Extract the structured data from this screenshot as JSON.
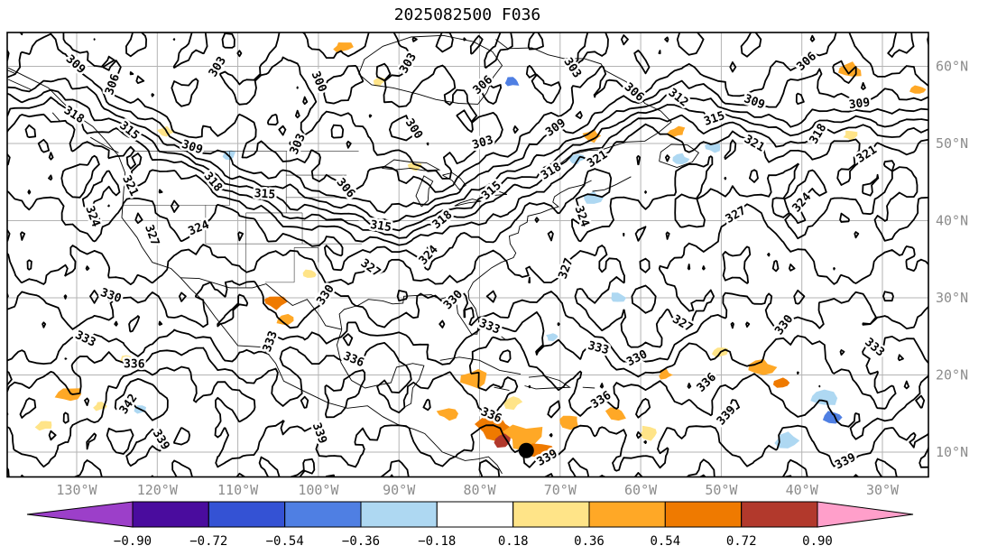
{
  "title": "2025082500 F036",
  "axes": {
    "lon_labels": [
      "130°W",
      "120°W",
      "110°W",
      "100°W",
      "90°W",
      "80°W",
      "70°W",
      "60°W",
      "50°W",
      "40°W",
      "30°W"
    ],
    "lon_values_deg_w": [
      130,
      120,
      110,
      100,
      90,
      80,
      70,
      60,
      50,
      40,
      30
    ],
    "lat_labels": [
      "60°N",
      "50°N",
      "40°N",
      "30°N",
      "20°N",
      "10°N"
    ],
    "lat_values_deg_n": [
      60,
      50,
      40,
      30,
      20,
      10
    ],
    "label_color": "#8c8c8c"
  },
  "colorbar": {
    "tick_labels": [
      "−0.90",
      "−0.72",
      "−0.54",
      "−0.36",
      "−0.18",
      "0.18",
      "0.36",
      "0.54",
      "0.72",
      "0.90"
    ],
    "boundaries": [
      -0.9,
      -0.72,
      -0.54,
      -0.36,
      -0.18,
      0.18,
      0.36,
      0.54,
      0.72,
      0.9
    ],
    "colors": [
      "#9c3fc9",
      "#4a0c9e",
      "#3452d4",
      "#4f7fe3",
      "#aed8f2",
      "#ffffff",
      "#ffe488",
      "#ffa826",
      "#ef7a00",
      "#b2392c",
      "#ff9fca"
    ],
    "extend": "both"
  },
  "chart_data": {
    "type": "heatmap",
    "subtype": "contour-map-with-anomaly-shading",
    "title": "2025082500 F036",
    "region": {
      "lon_range_deg_w": [
        138,
        24
      ],
      "lat_range_deg_n": [
        6,
        64
      ]
    },
    "grid_on": true,
    "contours": {
      "color": "#000000",
      "interval": 3,
      "levels": [
        294,
        297,
        300,
        303,
        306,
        309,
        312,
        315,
        318,
        321,
        324,
        327,
        330,
        333,
        336,
        339,
        342,
        345,
        348
      ],
      "visible_labels": [
        300,
        303,
        306,
        309,
        315,
        318,
        321,
        324,
        327,
        330,
        333,
        336,
        339,
        342
      ]
    },
    "shading": {
      "boundaries": [
        -0.9,
        -0.72,
        -0.54,
        -0.36,
        -0.18,
        0.18,
        0.36,
        0.54,
        0.72,
        0.9
      ],
      "colors": [
        "#9c3fc9",
        "#4a0c9e",
        "#3452d4",
        "#4f7fe3",
        "#aed8f2",
        "#ffffff",
        "#ffe488",
        "#ffa826",
        "#ef7a00",
        "#b2392c",
        "#ff9fca"
      ],
      "patch_format": [
        "lon_deg_w",
        "lat_deg_n",
        "value",
        "radius_px"
      ],
      "patches": [
        [
          78,
          13,
          0.62,
          15
        ],
        [
          77,
          11.5,
          0.82,
          8
        ],
        [
          74.5,
          12,
          0.45,
          15
        ],
        [
          72.5,
          10,
          0.62,
          10
        ],
        [
          76,
          16.5,
          0.28,
          8
        ],
        [
          80.5,
          19.5,
          0.45,
          10
        ],
        [
          84,
          15,
          0.45,
          8
        ],
        [
          69,
          14,
          0.45,
          9
        ],
        [
          63,
          15,
          0.45,
          8
        ],
        [
          59,
          12.5,
          0.28,
          8
        ],
        [
          105.5,
          29.5,
          0.62,
          9
        ],
        [
          104,
          27,
          0.45,
          7
        ],
        [
          131,
          17.5,
          0.45,
          10
        ],
        [
          134,
          13.5,
          0.28,
          7
        ],
        [
          127,
          16,
          0.28,
          6
        ],
        [
          45,
          21,
          0.45,
          10
        ],
        [
          42.5,
          19,
          0.62,
          7
        ],
        [
          37.5,
          17,
          -0.28,
          12
        ],
        [
          42,
          11.5,
          -0.28,
          9
        ],
        [
          36,
          14.5,
          -0.45,
          8
        ],
        [
          55.5,
          51.5,
          0.45,
          7
        ],
        [
          51,
          49.5,
          -0.28,
          6
        ],
        [
          66,
          51,
          0.45,
          7
        ],
        [
          55,
          48,
          -0.28,
          6
        ],
        [
          34,
          59.5,
          0.45,
          9
        ],
        [
          97,
          62.5,
          0.45,
          7
        ],
        [
          66,
          43,
          -0.28,
          7
        ],
        [
          101,
          33,
          0.28,
          6
        ],
        [
          119,
          51.5,
          0.28,
          6
        ],
        [
          111,
          48.5,
          -0.28,
          5
        ],
        [
          34,
          51,
          0.28,
          6
        ],
        [
          88,
          47,
          0.28,
          5
        ],
        [
          92.5,
          58,
          0.28,
          5
        ],
        [
          50,
          23,
          0.28,
          7
        ],
        [
          57,
          20,
          0.45,
          6
        ],
        [
          63,
          30,
          -0.28,
          6
        ],
        [
          71,
          25,
          -0.28,
          5
        ],
        [
          124,
          22,
          0.28,
          5
        ],
        [
          76,
          58,
          -0.45,
          6
        ],
        [
          68,
          48,
          -0.28,
          6
        ],
        [
          25.5,
          57,
          0.45,
          6
        ],
        [
          122,
          15.5,
          -0.28,
          5
        ]
      ]
    },
    "marker": {
      "shape": "filled-circle",
      "color": "#000000",
      "lon_deg_w": 74.2,
      "lat_deg_n": 10.2
    }
  }
}
